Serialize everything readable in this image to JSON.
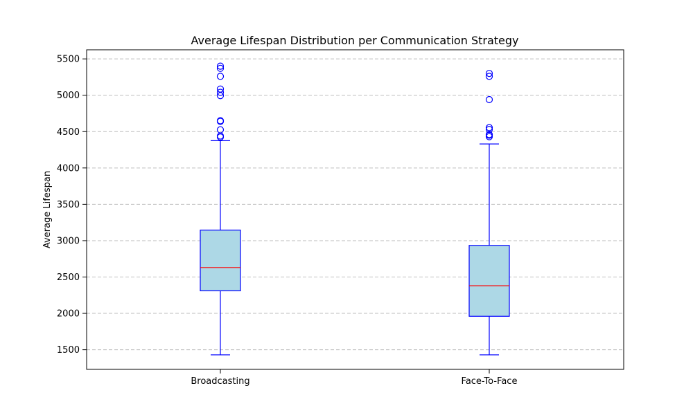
{
  "chart_data": {
    "type": "box",
    "title": "Average Lifespan Distribution per Communication Strategy",
    "xlabel": "",
    "ylabel": "Average Lifespan",
    "ylim": [
      1230,
      5625
    ],
    "yticks": [
      1500,
      2000,
      2500,
      3000,
      3500,
      4000,
      4500,
      5000,
      5500
    ],
    "grid": {
      "y": true,
      "style": "dashed",
      "color": "#bdbdbd"
    },
    "colors": {
      "box_fill": "#add8e6",
      "box_edge": "#0000ff",
      "whisker": "#0000ff",
      "median": "#ff0000",
      "outlier_edge": "#0000ff",
      "axis": "#000000"
    },
    "categories": [
      "Broadcasting",
      "Face-To-Face"
    ],
    "boxes": [
      {
        "label": "Broadcasting",
        "whisker_low": 1430,
        "q1": 2310,
        "median": 2630,
        "q3": 3145,
        "whisker_high": 4375,
        "outliers": [
          4425,
          4440,
          4525,
          4640,
          4650,
          4995,
          5040,
          5085,
          5260,
          5370,
          5400
        ]
      },
      {
        "label": "Face-To-Face",
        "whisker_low": 1430,
        "q1": 1960,
        "median": 2380,
        "q3": 2935,
        "whisker_high": 4330,
        "outliers": [
          4430,
          4450,
          4460,
          4530,
          4555,
          4940,
          5260,
          5300
        ]
      }
    ]
  }
}
